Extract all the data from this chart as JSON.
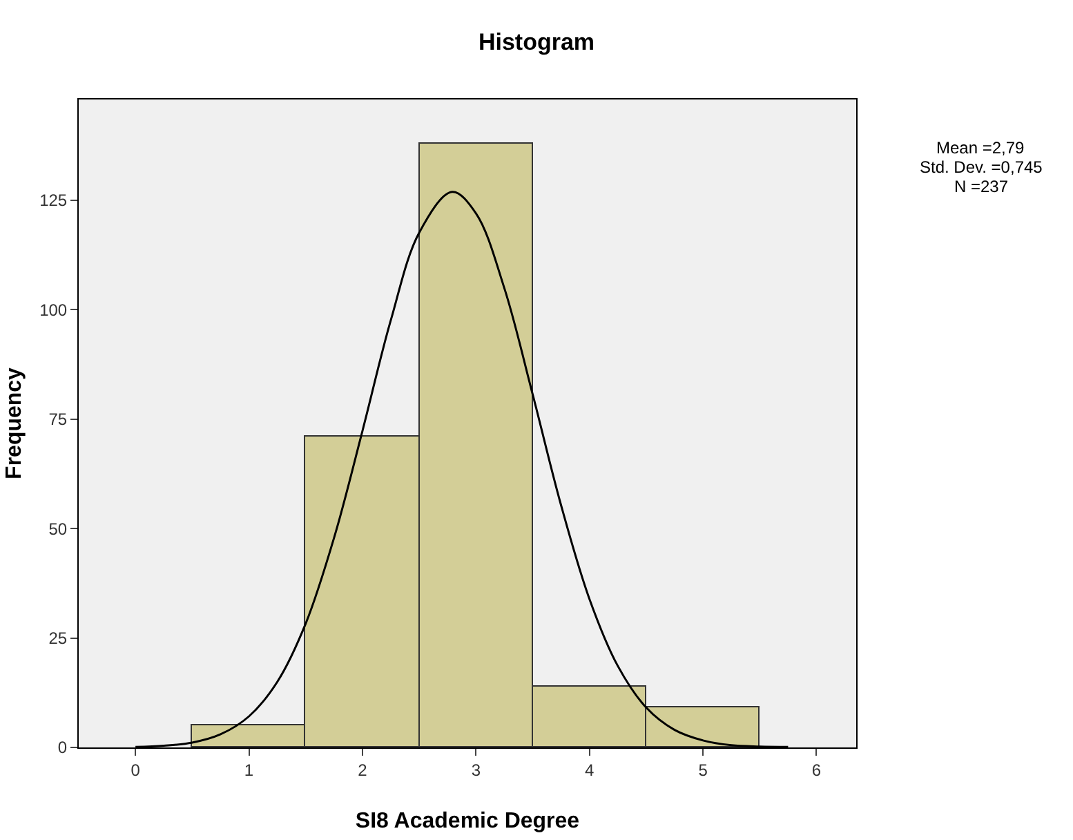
{
  "chart_data": {
    "type": "histogram",
    "title": "Histogram",
    "xlabel": "SI8 Academic Degree",
    "ylabel": "Frequency",
    "bins": [
      0.5,
      1.5,
      2.5,
      3.5,
      4.5,
      5.5
    ],
    "values": [
      5,
      71,
      138,
      14,
      9
    ],
    "color": "#d3ce97",
    "series": [
      {
        "type": "line",
        "color": "#000000",
        "x": [
          0,
          0.25,
          0.5,
          0.75,
          1,
          1.25,
          1.5,
          1.75,
          2,
          2.25,
          2.5,
          2.79,
          3,
          3.25,
          3.5,
          3.75,
          4,
          4.25,
          4.5,
          4.75,
          5,
          5.25,
          5.5,
          5.75
        ],
        "values": [
          0.1,
          0.4,
          1.1,
          3,
          7.1,
          15,
          28.3,
          47.9,
          72.3,
          97.6,
          117.6,
          126.9,
          122,
          104.9,
          80.6,
          55.3,
          33.9,
          18.6,
          9.1,
          4,
          1.6,
          0.5,
          0.2,
          0.1
        ]
      }
    ],
    "xlim": [
      -0.5,
      6.35
    ],
    "xticks": [
      0,
      1,
      2,
      3,
      4,
      5,
      6
    ],
    "ylim": [
      0,
      148
    ],
    "yticks": [
      0,
      25,
      50,
      75,
      100,
      125
    ],
    "grid": false,
    "annotations": [
      "Mean =2,79",
      "Std. Dev. =0,745",
      "N =237"
    ]
  }
}
